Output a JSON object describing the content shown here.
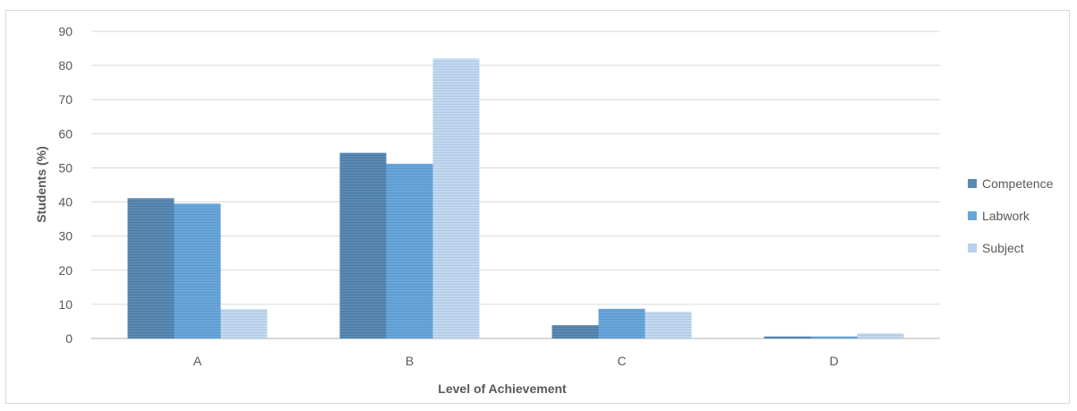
{
  "chart_data": {
    "type": "bar",
    "title": "",
    "xlabel": "Level of Achievement",
    "ylabel": "Students (%)",
    "categories": [
      "A",
      "B",
      "C",
      "D"
    ],
    "ylim": [
      0,
      90
    ],
    "yticks": [
      0,
      10,
      20,
      30,
      40,
      50,
      60,
      70,
      80,
      90
    ],
    "grid": true,
    "legend_position": "right",
    "series": [
      {
        "name": "Competence",
        "color": "#5a8ab4",
        "values": [
          41.1,
          54.4,
          3.9,
          0.6
        ]
      },
      {
        "name": "Labwork",
        "color": "#6aa6d9",
        "values": [
          39.5,
          51.2,
          8.7,
          0.6
        ]
      },
      {
        "name": "Subject",
        "color": "#b8d0eb",
        "values": [
          8.6,
          82.0,
          7.8,
          1.5
        ]
      }
    ]
  }
}
